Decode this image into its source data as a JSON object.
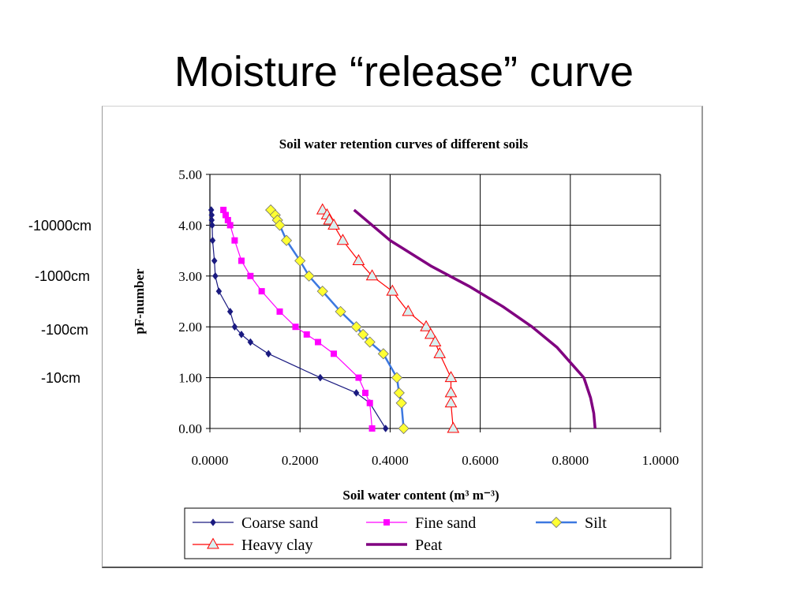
{
  "slide": {
    "title": "Moisture “release” curve",
    "side_labels": [
      "-10000cm",
      "-1000cm",
      "-100cm",
      "-10cm"
    ]
  },
  "chart_data": {
    "type": "line",
    "title": "Soil water retention curves of different soils",
    "xlabel": "Soil water content  (m³ m⁻³)",
    "ylabel": "pF-number",
    "xlim": [
      0,
      1
    ],
    "ylim": [
      0,
      5
    ],
    "x_ticks": [
      "0.0000",
      "0.2000",
      "0.4000",
      "0.6000",
      "0.8000",
      "1.0000"
    ],
    "y_ticks": [
      "0.00",
      "1.00",
      "2.00",
      "3.00",
      "4.00",
      "5.00"
    ],
    "grid": true,
    "legend_position": "bottom",
    "series": [
      {
        "name": "Coarse sand",
        "color": "#1a1a80",
        "marker": "diamond",
        "points": [
          [
            0.003,
            4.3
          ],
          [
            0.004,
            4.2
          ],
          [
            0.004,
            4.1
          ],
          [
            0.005,
            4.0
          ],
          [
            0.006,
            3.7
          ],
          [
            0.01,
            3.3
          ],
          [
            0.012,
            3.0
          ],
          [
            0.02,
            2.7
          ],
          [
            0.045,
            2.3
          ],
          [
            0.055,
            2.0
          ],
          [
            0.07,
            1.85
          ],
          [
            0.09,
            1.7
          ],
          [
            0.13,
            1.47
          ],
          [
            0.245,
            1.0
          ],
          [
            0.325,
            0.7
          ],
          [
            0.355,
            0.5
          ],
          [
            0.39,
            0.0
          ]
        ]
      },
      {
        "name": "Fine sand",
        "color": "#ff00ff",
        "marker": "square",
        "points": [
          [
            0.03,
            4.3
          ],
          [
            0.035,
            4.2
          ],
          [
            0.04,
            4.1
          ],
          [
            0.045,
            4.0
          ],
          [
            0.055,
            3.7
          ],
          [
            0.07,
            3.3
          ],
          [
            0.09,
            3.0
          ],
          [
            0.115,
            2.7
          ],
          [
            0.155,
            2.3
          ],
          [
            0.19,
            2.0
          ],
          [
            0.215,
            1.85
          ],
          [
            0.24,
            1.7
          ],
          [
            0.275,
            1.47
          ],
          [
            0.33,
            1.0
          ],
          [
            0.345,
            0.7
          ],
          [
            0.355,
            0.5
          ],
          [
            0.36,
            0.0
          ]
        ]
      },
      {
        "name": "Silt",
        "color": "#3c78e0",
        "marker": "diamond-yellow",
        "points": [
          [
            0.135,
            4.3
          ],
          [
            0.145,
            4.2
          ],
          [
            0.15,
            4.1
          ],
          [
            0.155,
            4.0
          ],
          [
            0.17,
            3.7
          ],
          [
            0.2,
            3.3
          ],
          [
            0.22,
            3.0
          ],
          [
            0.25,
            2.7
          ],
          [
            0.29,
            2.3
          ],
          [
            0.325,
            2.0
          ],
          [
            0.34,
            1.85
          ],
          [
            0.355,
            1.7
          ],
          [
            0.385,
            1.47
          ],
          [
            0.415,
            1.0
          ],
          [
            0.42,
            0.7
          ],
          [
            0.425,
            0.5
          ],
          [
            0.43,
            0.0
          ]
        ]
      },
      {
        "name": "Heavy clay",
        "color": "#ff0000",
        "marker": "triangle",
        "points": [
          [
            0.25,
            4.3
          ],
          [
            0.26,
            4.2
          ],
          [
            0.265,
            4.1
          ],
          [
            0.275,
            4.0
          ],
          [
            0.295,
            3.7
          ],
          [
            0.33,
            3.3
          ],
          [
            0.36,
            3.0
          ],
          [
            0.405,
            2.7
          ],
          [
            0.44,
            2.3
          ],
          [
            0.48,
            2.0
          ],
          [
            0.49,
            1.85
          ],
          [
            0.5,
            1.7
          ],
          [
            0.51,
            1.47
          ],
          [
            0.535,
            1.0
          ],
          [
            0.535,
            0.7
          ],
          [
            0.535,
            0.5
          ],
          [
            0.54,
            0.0
          ]
        ]
      },
      {
        "name": "Peat",
        "color": "#800080",
        "marker": "none",
        "points": [
          [
            0.32,
            4.3
          ],
          [
            0.4,
            3.7
          ],
          [
            0.49,
            3.2
          ],
          [
            0.575,
            2.8
          ],
          [
            0.65,
            2.4
          ],
          [
            0.715,
            2.0
          ],
          [
            0.77,
            1.6
          ],
          [
            0.8,
            1.3
          ],
          [
            0.83,
            1.0
          ],
          [
            0.845,
            0.6
          ],
          [
            0.852,
            0.3
          ],
          [
            0.855,
            0.0
          ]
        ]
      }
    ]
  }
}
